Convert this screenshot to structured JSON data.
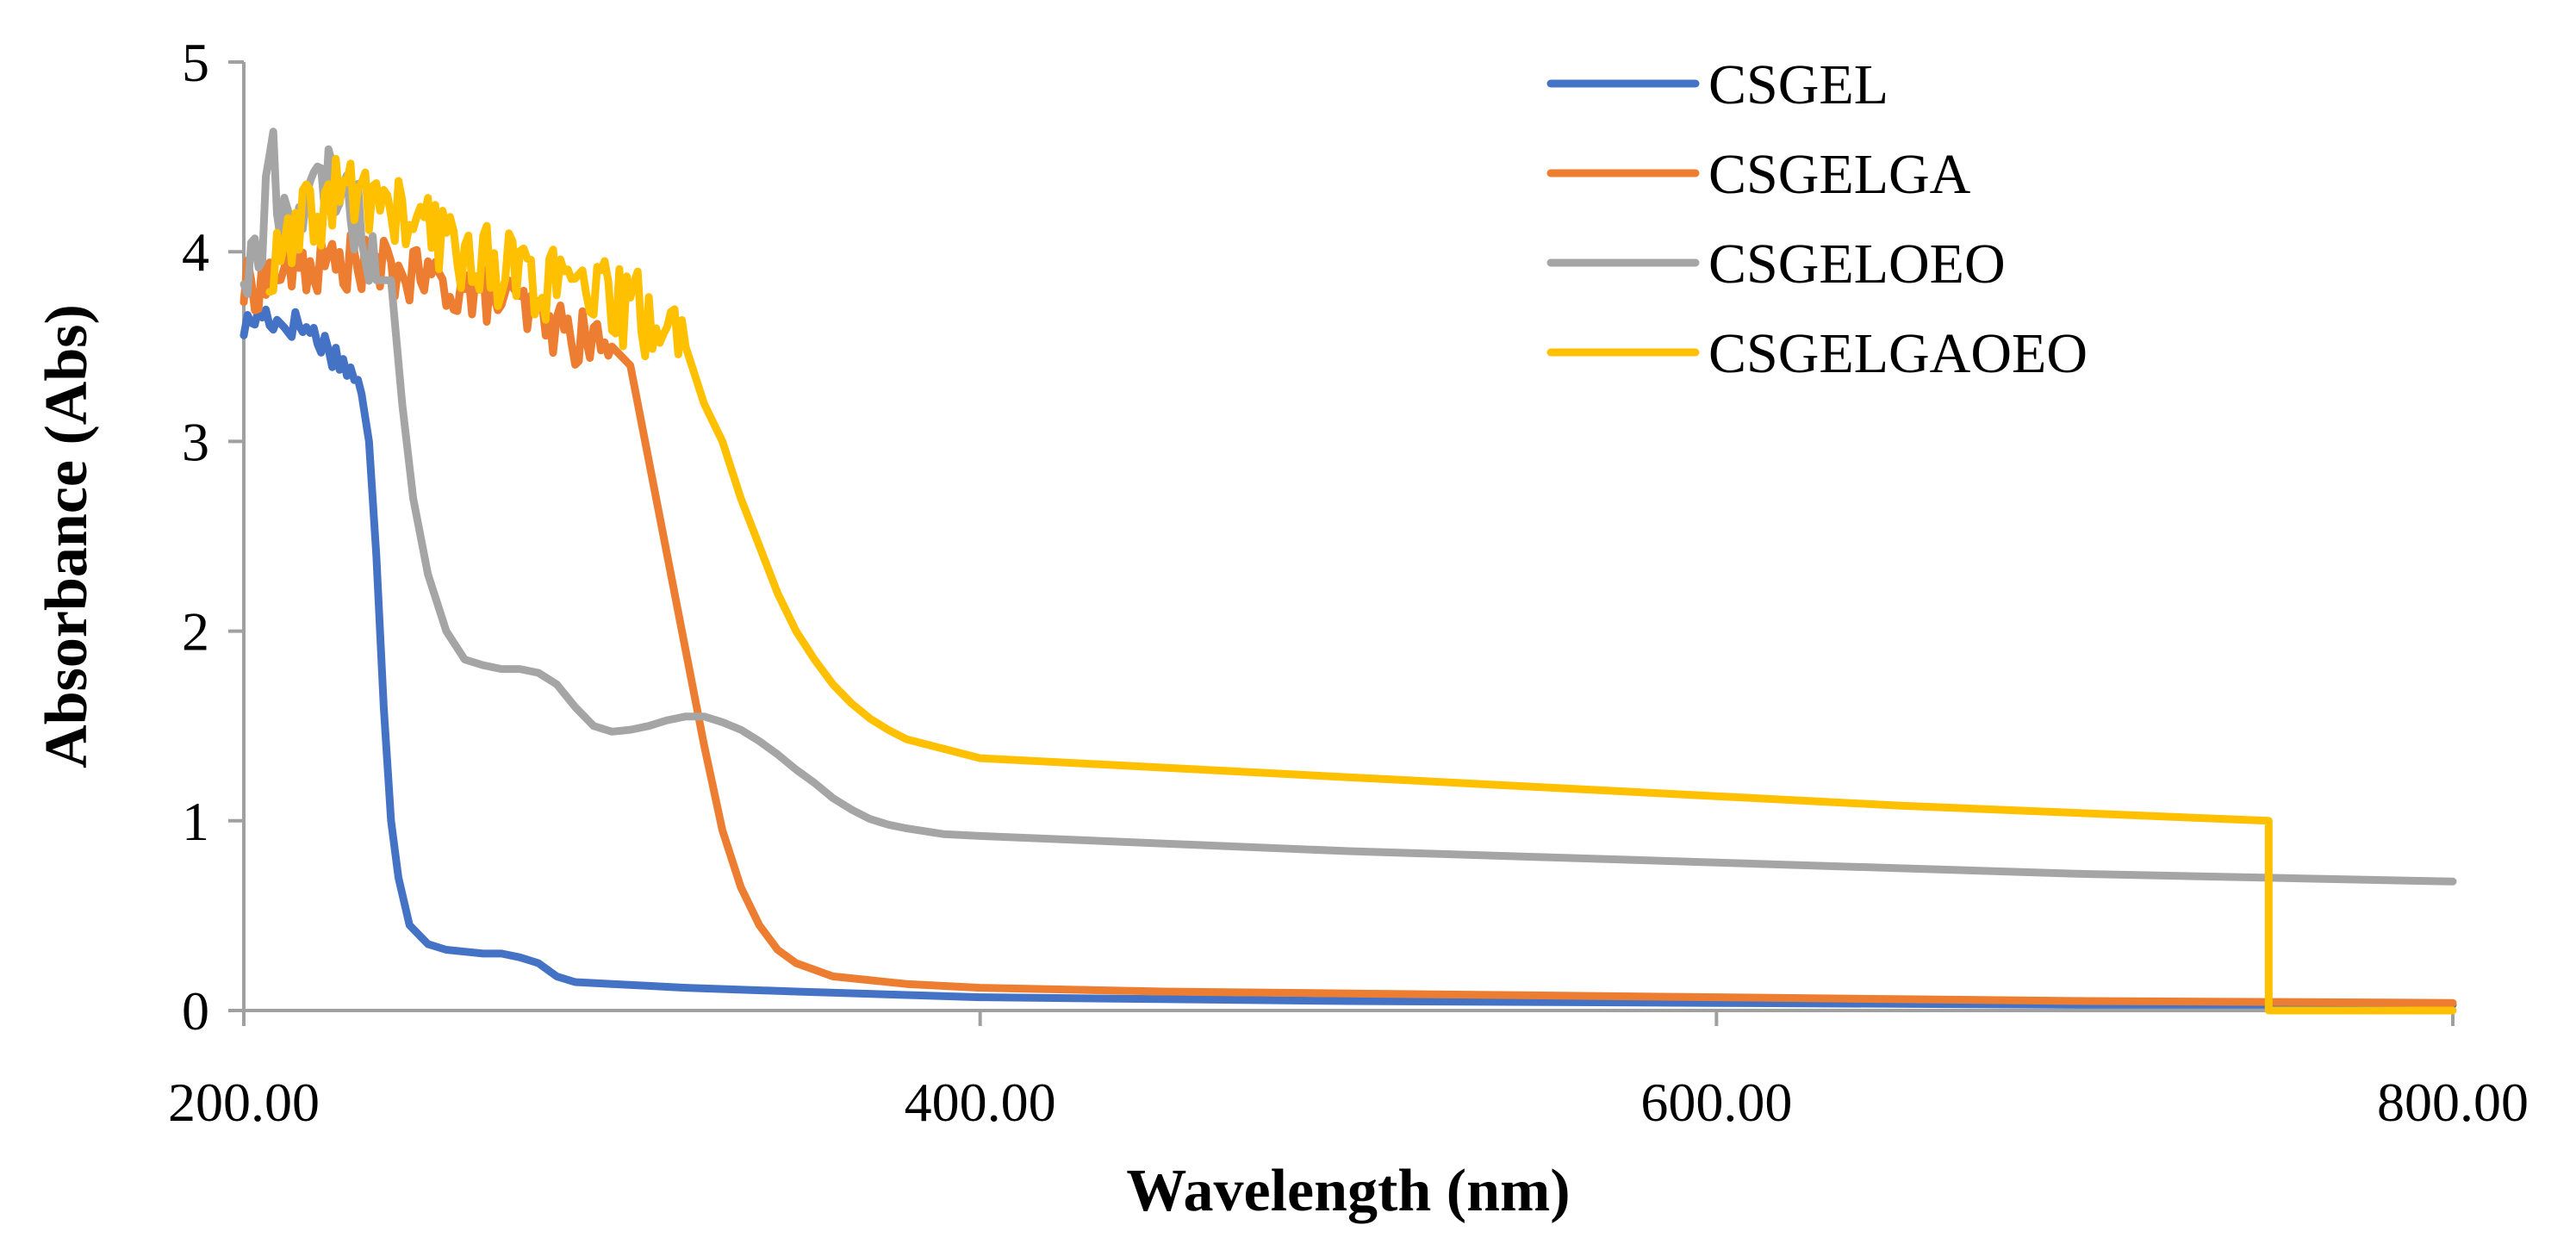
{
  "chart_data": {
    "type": "line",
    "title": "",
    "xlabel": "Wavelength (nm)",
    "ylabel": "Absorbance (Abs)",
    "xlim": [
      200,
      800
    ],
    "ylim": [
      0,
      5
    ],
    "x_ticks": [
      200,
      400,
      600,
      800
    ],
    "x_tick_labels": [
      "200.00",
      "400.00",
      "600.00",
      "800.00"
    ],
    "y_ticks": [
      0,
      1,
      2,
      3,
      4,
      5
    ],
    "y_tick_labels": [
      "0",
      "1",
      "2",
      "3",
      "4",
      "5"
    ],
    "grid": false,
    "legend_position": "top-right",
    "series": [
      {
        "name": "CSGEL",
        "color": "#4472C4",
        "noise": 0.08,
        "noise_until": 232,
        "points": [
          [
            200,
            3.6
          ],
          [
            205,
            3.68
          ],
          [
            210,
            3.62
          ],
          [
            215,
            3.62
          ],
          [
            220,
            3.55
          ],
          [
            225,
            3.45
          ],
          [
            230,
            3.35
          ],
          [
            232,
            3.25
          ],
          [
            234,
            3.0
          ],
          [
            236,
            2.4
          ],
          [
            238,
            1.6
          ],
          [
            240,
            1.0
          ],
          [
            242,
            0.7
          ],
          [
            245,
            0.45
          ],
          [
            250,
            0.35
          ],
          [
            255,
            0.32
          ],
          [
            260,
            0.31
          ],
          [
            265,
            0.3
          ],
          [
            270,
            0.3
          ],
          [
            275,
            0.28
          ],
          [
            280,
            0.25
          ],
          [
            285,
            0.18
          ],
          [
            290,
            0.15
          ],
          [
            300,
            0.14
          ],
          [
            320,
            0.12
          ],
          [
            350,
            0.1
          ],
          [
            400,
            0.07
          ],
          [
            500,
            0.05
          ],
          [
            600,
            0.04
          ],
          [
            700,
            0.03
          ],
          [
            800,
            0.03
          ]
        ]
      },
      {
        "name": "CSGELGA",
        "color": "#ED7D31",
        "noise": 0.15,
        "noise_until": 300,
        "points": [
          [
            200,
            3.8
          ],
          [
            210,
            3.9
          ],
          [
            220,
            3.92
          ],
          [
            230,
            3.95
          ],
          [
            240,
            3.9
          ],
          [
            250,
            3.85
          ],
          [
            260,
            3.8
          ],
          [
            270,
            3.75
          ],
          [
            280,
            3.65
          ],
          [
            290,
            3.55
          ],
          [
            300,
            3.5
          ],
          [
            305,
            3.4
          ],
          [
            308,
            3.1
          ],
          [
            312,
            2.7
          ],
          [
            316,
            2.3
          ],
          [
            320,
            1.9
          ],
          [
            325,
            1.4
          ],
          [
            330,
            0.95
          ],
          [
            335,
            0.65
          ],
          [
            340,
            0.45
          ],
          [
            345,
            0.32
          ],
          [
            350,
            0.25
          ],
          [
            360,
            0.18
          ],
          [
            380,
            0.14
          ],
          [
            400,
            0.12
          ],
          [
            450,
            0.1
          ],
          [
            500,
            0.09
          ],
          [
            600,
            0.07
          ],
          [
            700,
            0.05
          ],
          [
            800,
            0.04
          ]
        ]
      },
      {
        "name": "CSGELOEO",
        "color": "#A5A5A5",
        "noise": 0.2,
        "noise_until": 237,
        "points": [
          [
            200,
            3.9
          ],
          [
            205,
            4.0
          ],
          [
            207,
            4.6
          ],
          [
            210,
            4.2
          ],
          [
            215,
            4.2
          ],
          [
            220,
            4.3
          ],
          [
            225,
            4.4
          ],
          [
            230,
            4.2
          ],
          [
            235,
            4.0
          ],
          [
            240,
            3.85
          ],
          [
            243,
            3.2
          ],
          [
            246,
            2.7
          ],
          [
            250,
            2.3
          ],
          [
            255,
            2.0
          ],
          [
            260,
            1.85
          ],
          [
            265,
            1.82
          ],
          [
            270,
            1.8
          ],
          [
            275,
            1.8
          ],
          [
            280,
            1.78
          ],
          [
            285,
            1.72
          ],
          [
            290,
            1.6
          ],
          [
            295,
            1.5
          ],
          [
            300,
            1.47
          ],
          [
            305,
            1.48
          ],
          [
            310,
            1.5
          ],
          [
            315,
            1.53
          ],
          [
            320,
            1.55
          ],
          [
            325,
            1.55
          ],
          [
            330,
            1.52
          ],
          [
            335,
            1.48
          ],
          [
            340,
            1.42
          ],
          [
            345,
            1.35
          ],
          [
            350,
            1.27
          ],
          [
            355,
            1.2
          ],
          [
            360,
            1.12
          ],
          [
            365,
            1.06
          ],
          [
            370,
            1.01
          ],
          [
            375,
            0.98
          ],
          [
            380,
            0.96
          ],
          [
            390,
            0.93
          ],
          [
            400,
            0.92
          ],
          [
            450,
            0.88
          ],
          [
            500,
            0.84
          ],
          [
            550,
            0.81
          ],
          [
            600,
            0.78
          ],
          [
            650,
            0.75
          ],
          [
            700,
            0.72
          ],
          [
            750,
            0.7
          ],
          [
            800,
            0.68
          ]
        ]
      },
      {
        "name": "CSGELGAOEO",
        "color": "#FFC000",
        "noise": 0.22,
        "noise_until": 320,
        "points": [
          [
            207,
            3.85
          ],
          [
            215,
            4.1
          ],
          [
            225,
            4.3
          ],
          [
            235,
            4.3
          ],
          [
            245,
            4.15
          ],
          [
            255,
            4.05
          ],
          [
            265,
            3.95
          ],
          [
            275,
            3.9
          ],
          [
            285,
            3.8
          ],
          [
            295,
            3.75
          ],
          [
            305,
            3.7
          ],
          [
            315,
            3.6
          ],
          [
            320,
            3.5
          ],
          [
            325,
            3.2
          ],
          [
            330,
            3.0
          ],
          [
            335,
            2.7
          ],
          [
            340,
            2.45
          ],
          [
            345,
            2.2
          ],
          [
            350,
            2.0
          ],
          [
            355,
            1.85
          ],
          [
            360,
            1.72
          ],
          [
            365,
            1.62
          ],
          [
            370,
            1.54
          ],
          [
            375,
            1.48
          ],
          [
            380,
            1.43
          ],
          [
            390,
            1.38
          ],
          [
            400,
            1.33
          ],
          [
            450,
            1.28
          ],
          [
            500,
            1.23
          ],
          [
            550,
            1.18
          ],
          [
            600,
            1.13
          ],
          [
            650,
            1.08
          ],
          [
            700,
            1.04
          ],
          [
            750,
            1.0
          ],
          [
            750,
            0.0
          ],
          [
            800,
            0.0
          ]
        ]
      }
    ]
  }
}
